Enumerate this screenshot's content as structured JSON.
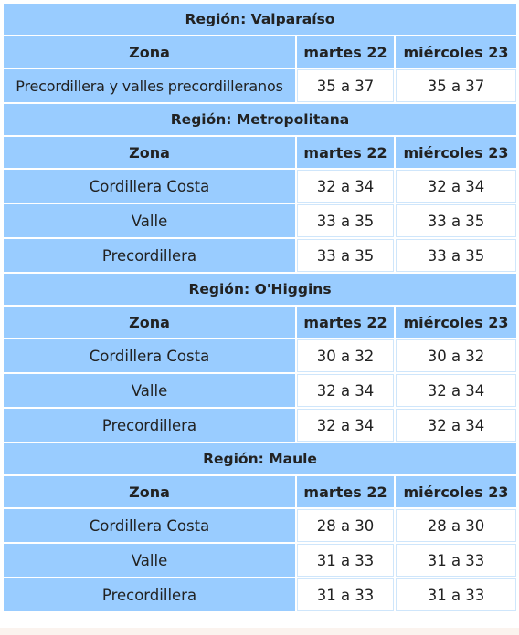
{
  "header_labels": {
    "zone": "Zona",
    "day1": "martes 22",
    "day2": "miércoles 23"
  },
  "regions": [
    {
      "title": "Región: Valparaíso",
      "rows": [
        {
          "zone": "Precordillera y valles precordilleranos",
          "day1": "35 a 37",
          "day2": "35 a 37"
        }
      ]
    },
    {
      "title": "Región: Metropolitana",
      "rows": [
        {
          "zone": "Cordillera Costa",
          "day1": "32 a 34",
          "day2": "32 a 34"
        },
        {
          "zone": "Valle",
          "day1": "33 a 35",
          "day2": "33 a 35"
        },
        {
          "zone": "Precordillera",
          "day1": "33 a 35",
          "day2": "33 a 35"
        }
      ]
    },
    {
      "title": "Región: O'Higgins",
      "rows": [
        {
          "zone": "Cordillera Costa",
          "day1": "30 a 32",
          "day2": "30 a 32"
        },
        {
          "zone": "Valle",
          "day1": "32 a 34",
          "day2": "32 a 34"
        },
        {
          "zone": "Precordillera",
          "day1": "32 a 34",
          "day2": "32 a 34"
        }
      ]
    },
    {
      "title": "Región: Maule",
      "rows": [
        {
          "zone": "Cordillera Costa",
          "day1": "28 a 30",
          "day2": "28 a 30"
        },
        {
          "zone": "Valle",
          "day1": "31 a 33",
          "day2": "31 a 33"
        },
        {
          "zone": "Precordillera",
          "day1": "31 a 33",
          "day2": "31 a 33"
        }
      ]
    }
  ],
  "colors": {
    "header_bg": "#99ccff",
    "cell_bg": "#ffffff",
    "text": "#222222"
  }
}
